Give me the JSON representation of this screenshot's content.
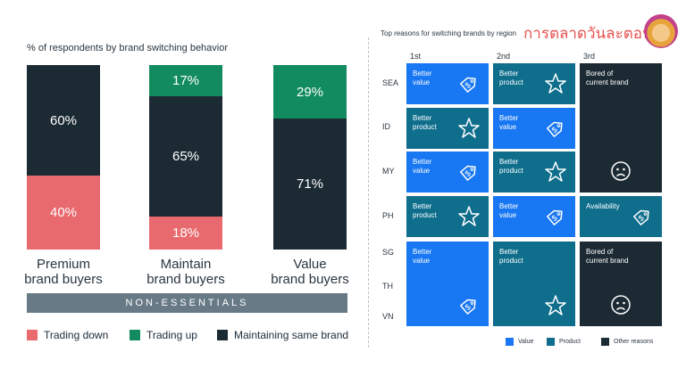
{
  "left_chart": {
    "title": "% of respondents by brand switching behavior",
    "band_label": "NON-ESSENTIALS",
    "colors": {
      "trading_down": "#e8696e",
      "trading_up": "#128c5e",
      "maintaining": "#1c2b33"
    },
    "legend": [
      {
        "key": "trading_down",
        "label": "Trading down"
      },
      {
        "key": "trading_up",
        "label": "Trading up"
      },
      {
        "key": "maintaining",
        "label": "Maintaining same brand"
      }
    ]
  },
  "right_chart": {
    "title": "Top reasons for switching brands by region",
    "brand_text": "การตลาดวันละตอน",
    "columns": [
      "1st",
      "2nd",
      "3rd"
    ],
    "rows": [
      "SEA",
      "ID",
      "MY",
      "PH",
      "SG",
      "TH",
      "VN"
    ],
    "colors": {
      "value": "#1877f2",
      "product": "#0e6e8c",
      "other": "#1c2b33"
    },
    "cells": [
      {
        "row": "SEA",
        "rank": "1st",
        "type": "value",
        "label1": "Better",
        "label2": "value",
        "icon": "price-tag-icon"
      },
      {
        "row": "SEA",
        "rank": "2nd",
        "type": "product",
        "label1": "Better",
        "label2": "product",
        "icon": "star-icon"
      },
      {
        "row": "ID",
        "rank": "1st",
        "type": "product",
        "label1": "Better",
        "label2": "product",
        "icon": "star-icon"
      },
      {
        "row": "ID",
        "rank": "2nd",
        "type": "value",
        "label1": "Better",
        "label2": "value",
        "icon": "price-tag-icon"
      },
      {
        "row": "MY",
        "rank": "1st",
        "type": "value",
        "label1": "Better",
        "label2": "value",
        "icon": "price-tag-icon"
      },
      {
        "row": "MY",
        "rank": "2nd",
        "type": "product",
        "label1": "Better",
        "label2": "product",
        "icon": "star-icon"
      },
      {
        "row": "SEA-MY",
        "rank": "3rd",
        "type": "other",
        "label1": "Bored of",
        "label2": "current brand",
        "icon": "sad-face-icon"
      },
      {
        "row": "PH",
        "rank": "1st",
        "type": "product",
        "label1": "Better",
        "label2": "product",
        "icon": "star-icon"
      },
      {
        "row": "PH",
        "rank": "2nd",
        "type": "value",
        "label1": "Better",
        "label2": "value",
        "icon": "price-tag-icon"
      },
      {
        "row": "PH",
        "rank": "3rd",
        "type": "product",
        "label1": "Availability",
        "label2": "",
        "icon": "price-tag-icon"
      },
      {
        "row": "SG-VN",
        "rank": "1st",
        "type": "value",
        "label1": "Better",
        "label2": "value",
        "icon": "price-tag-icon"
      },
      {
        "row": "SG-VN",
        "rank": "2nd",
        "type": "product",
        "label1": "Better",
        "label2": "product",
        "icon": "star-icon"
      },
      {
        "row": "SG-VN",
        "rank": "3rd",
        "type": "other",
        "label1": "Bored of",
        "label2": "current brand",
        "icon": "sad-face-icon"
      }
    ],
    "legend": [
      {
        "key": "value",
        "label": "Value"
      },
      {
        "key": "product",
        "label": "Product"
      },
      {
        "key": "other",
        "label": "Other reasons"
      }
    ]
  },
  "chart_data": [
    {
      "type": "bar",
      "stacked": true,
      "title": "% of respondents by brand switching behavior",
      "categories": [
        "Premium brand buyers",
        "Maintain brand buyers",
        "Value brand buyers"
      ],
      "category_lines": [
        [
          "Premium",
          "brand buyers"
        ],
        [
          "Maintain",
          "brand buyers"
        ],
        [
          "Value",
          "brand buyers"
        ]
      ],
      "series": [
        {
          "name": "Trading down",
          "values": [
            40,
            18,
            0
          ]
        },
        {
          "name": "Maintaining same brand",
          "values": [
            60,
            65,
            71
          ]
        },
        {
          "name": "Trading up",
          "values": [
            0,
            17,
            29
          ]
        }
      ],
      "ylim": [
        0,
        100
      ],
      "grid": false,
      "legend_position": "bottom"
    },
    {
      "type": "table",
      "title": "Top reasons for switching brands by region",
      "columns": [
        "1st",
        "2nd",
        "3rd"
      ],
      "rows": [
        "SEA",
        "ID",
        "MY",
        "PH",
        "SG",
        "TH",
        "VN"
      ]
    }
  ]
}
